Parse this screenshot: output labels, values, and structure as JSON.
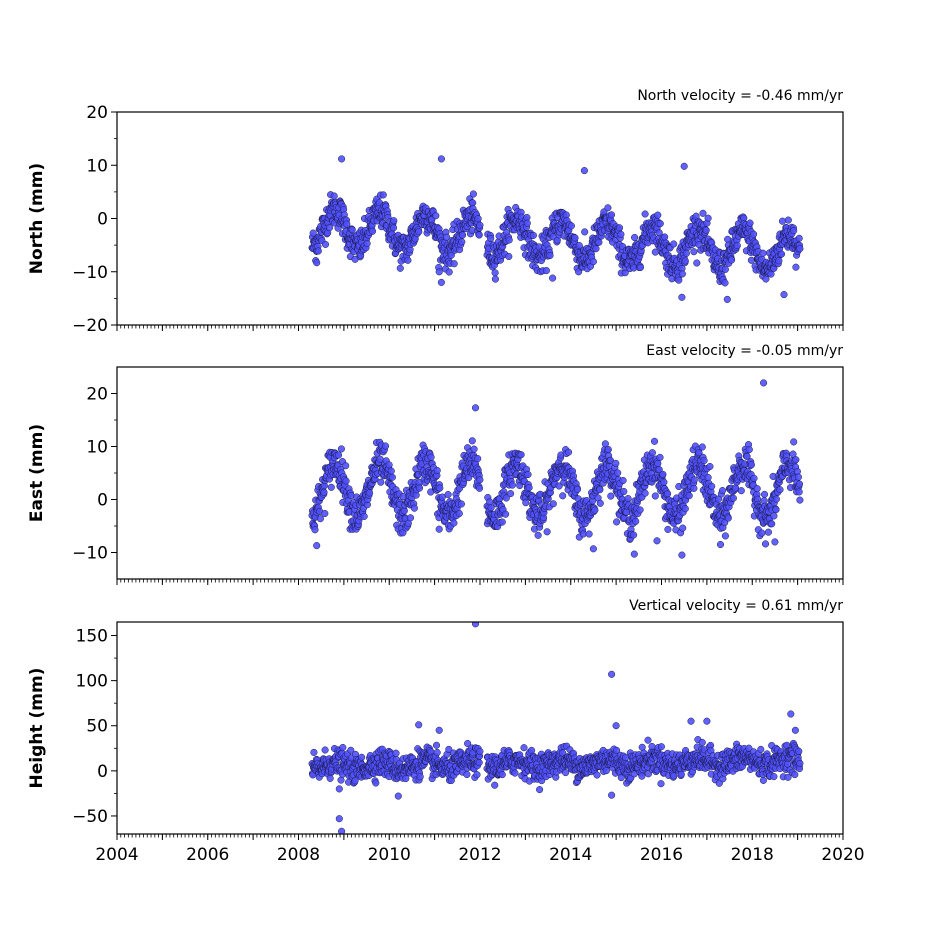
{
  "chart_data": [
    {
      "type": "scatter",
      "title": "North velocity = -0.46 mm/yr",
      "ylabel": "North (mm)",
      "xlim": [
        2004,
        2020
      ],
      "ylim": [
        -20,
        20
      ],
      "yticks": [
        -20,
        -10,
        0,
        10,
        20
      ],
      "ytick_labels": [
        "−20",
        "−10",
        "0",
        "10",
        "20"
      ],
      "xticks": [
        2004,
        2006,
        2008,
        2010,
        2012,
        2014,
        2016,
        2018,
        2020
      ],
      "xtick_labels": [
        "",
        "",
        "",
        "",
        "",
        "",
        "",
        "",
        ""
      ],
      "marker_color": "#5050ff",
      "marker_edge": "#1a1a40",
      "series": [
        {
          "x_range": [
            2008.3,
            2019.05
          ],
          "gaps": [
            [
              2012.0,
              2012.15
            ]
          ],
          "trend_start": -1.5,
          "trend_mm_per_yr": -0.46,
          "seasonal_amplitude": 3.5,
          "scatter_sd": 1.6,
          "outliers": [
            [
              2008.95,
              11.2
            ],
            [
              2011.15,
              11.2
            ],
            [
              2014.3,
              9.0
            ],
            [
              2016.5,
              9.8
            ],
            [
              2008.4,
              -8.3
            ],
            [
              2011.15,
              -12.0
            ],
            [
              2011.1,
              -10.0
            ],
            [
              2013.6,
              -11.2
            ],
            [
              2016.45,
              -14.8
            ],
            [
              2017.45,
              -15.2
            ],
            [
              2018.7,
              -14.3
            ]
          ]
        }
      ]
    },
    {
      "type": "scatter",
      "title": "East velocity = -0.05 mm/yr",
      "ylabel": "East (mm)",
      "xlim": [
        2004,
        2020
      ],
      "ylim": [
        -15,
        25
      ],
      "yticks": [
        -10,
        0,
        10,
        20
      ],
      "ytick_labels": [
        "−10",
        "0",
        "10",
        "20"
      ],
      "xticks": [
        2004,
        2006,
        2008,
        2010,
        2012,
        2014,
        2016,
        2018,
        2020
      ],
      "xtick_labels": [
        "",
        "",
        "",
        "",
        "",
        "",
        "",
        "",
        ""
      ],
      "marker_color": "#5050ff",
      "marker_edge": "#1a1a40",
      "series": [
        {
          "x_range": [
            2008.3,
            2019.05
          ],
          "gaps": [
            [
              2012.0,
              2012.15
            ]
          ],
          "trend_start": 2.0,
          "trend_mm_per_yr": -0.05,
          "seasonal_amplitude": 5.0,
          "scatter_sd": 1.9,
          "outliers": [
            [
              2011.9,
              17.3
            ],
            [
              2018.25,
              22.0
            ],
            [
              2008.4,
              -8.7
            ],
            [
              2011.1,
              -5.6
            ],
            [
              2014.5,
              -9.3
            ],
            [
              2015.4,
              -10.3
            ],
            [
              2015.9,
              -7.8
            ],
            [
              2016.45,
              -10.5
            ],
            [
              2017.3,
              -8.5
            ],
            [
              2018.5,
              -8.0
            ]
          ]
        }
      ]
    },
    {
      "type": "scatter",
      "title": "Vertical velocity = 0.61 mm/yr",
      "ylabel": "Height (mm)",
      "xlim": [
        2004,
        2020
      ],
      "ylim": [
        -70,
        165
      ],
      "yticks": [
        -50,
        0,
        50,
        100,
        150
      ],
      "ytick_labels": [
        "−50",
        "0",
        "50",
        "100",
        "150"
      ],
      "xticks": [
        2004,
        2006,
        2008,
        2010,
        2012,
        2014,
        2016,
        2018,
        2020
      ],
      "xtick_labels": [
        "2004",
        "2006",
        "2008",
        "2010",
        "2012",
        "2014",
        "2016",
        "2018",
        "2020"
      ],
      "marker_color": "#5050ff",
      "marker_edge": "#1a1a40",
      "series": [
        {
          "x_range": [
            2008.3,
            2019.05
          ],
          "gaps": [
            [
              2012.0,
              2012.15
            ]
          ],
          "trend_start": 5.0,
          "trend_mm_per_yr": 0.61,
          "seasonal_amplitude": 4.0,
          "scatter_sd": 7.5,
          "outliers": [
            [
              2011.9,
              163.0
            ],
            [
              2014.9,
              107.0
            ],
            [
              2008.9,
              -53.0
            ],
            [
              2008.95,
              -67.0
            ],
            [
              2015.0,
              50.0
            ],
            [
              2010.65,
              51.0
            ],
            [
              2016.65,
              55.0
            ],
            [
              2017.0,
              55.0
            ],
            [
              2018.85,
              63.0
            ],
            [
              2010.2,
              -28.0
            ],
            [
              2014.9,
              -27.0
            ],
            [
              2008.9,
              -20.0
            ],
            [
              2011.1,
              45.0
            ],
            [
              2018.95,
              45.0
            ]
          ]
        }
      ]
    }
  ]
}
